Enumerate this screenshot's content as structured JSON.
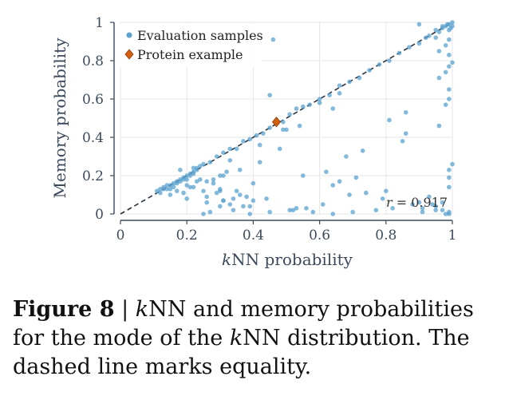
{
  "chart_data": {
    "type": "scatter",
    "xlabel_italic": "k",
    "xlabel_rest": "NN probability",
    "ylabel": "Memory probability",
    "xlim": [
      0,
      1
    ],
    "ylim": [
      0,
      1
    ],
    "xticks": [
      "0",
      "0.2",
      "0.4",
      "0.6",
      "0.8",
      "1"
    ],
    "yticks": [
      "0",
      "0.2",
      "0.4",
      "0.6",
      "0.8",
      "1"
    ],
    "grid": true,
    "legend_position": "top-left",
    "legend": [
      "Evaluation samples",
      "Protein example"
    ],
    "annotation_italic": "r",
    "annotation_rest": " = 0.917",
    "reference_line": "y = x (dashed)",
    "colors": {
      "samples": "#5aa2cf",
      "highlight": "#d35f0f",
      "axis": "#3c4a5c",
      "grid": "#e6e6e6"
    },
    "series": [
      {
        "name": "Evaluation samples",
        "x": [
          0.11,
          0.12,
          0.13,
          0.14,
          0.15,
          0.16,
          0.17,
          0.18,
          0.19,
          0.2,
          0.21,
          0.22,
          0.23,
          0.24,
          0.12,
          0.14,
          0.16,
          0.18,
          0.2,
          0.22,
          0.13,
          0.15,
          0.17,
          0.19,
          0.21,
          0.23,
          0.25,
          0.27,
          0.29,
          0.31,
          0.33,
          0.35,
          0.37,
          0.39,
          0.41,
          0.43,
          0.45,
          0.47,
          0.49,
          0.51,
          0.53,
          0.55,
          0.57,
          0.6,
          0.63,
          0.66,
          0.69,
          0.72,
          0.75,
          0.78,
          0.81,
          0.84,
          0.87,
          0.9,
          0.93,
          0.96,
          0.98,
          0.99,
          1.0,
          1.0,
          0.995,
          0.99,
          0.985,
          0.97,
          0.95,
          0.92,
          0.96,
          0.99,
          1.0,
          0.99,
          0.98,
          1.0,
          0.97,
          0.94,
          0.91,
          0.95,
          0.99,
          0.86,
          0.73,
          0.68,
          0.86,
          0.2,
          0.22,
          0.24,
          0.25,
          0.26,
          0.28,
          0.3,
          0.32,
          0.15,
          0.17,
          0.19,
          0.21,
          0.23,
          0.26,
          0.29,
          0.31,
          0.34,
          0.36,
          0.38,
          0.26,
          0.3,
          0.33,
          0.37,
          0.28,
          0.36,
          0.42,
          0.48,
          0.45,
          0.5,
          0.54,
          0.6,
          0.64,
          0.66,
          0.33,
          0.42,
          0.55,
          0.62,
          0.71,
          0.77,
          0.97,
          0.52,
          0.25,
          0.27,
          0.34,
          0.4,
          0.44,
          0.56,
          0.61,
          0.69,
          0.74,
          0.82,
          0.88,
          0.95,
          0.99,
          0.99,
          0.99,
          0.98,
          0.96,
          0.93,
          0.9,
          0.85,
          0.79,
          0.66,
          0.58,
          0.51,
          0.39,
          0.31,
          0.22,
          0.18,
          0.3,
          0.35,
          0.39,
          0.45,
          0.53,
          0.64,
          0.7,
          0.8,
          0.91,
          0.99,
          0.46,
          0.31,
          0.2,
          0.3,
          0.4,
          0.49,
          0.64,
          0.81,
          0.98,
          0.96,
          0.99,
          0.99,
          0.98,
          0.99,
          0.95,
          0.97,
          0.9
        ],
        "y": [
          0.12,
          0.13,
          0.13,
          0.15,
          0.15,
          0.16,
          0.17,
          0.18,
          0.19,
          0.2,
          0.21,
          0.22,
          0.23,
          0.25,
          0.11,
          0.13,
          0.14,
          0.17,
          0.18,
          0.21,
          0.14,
          0.13,
          0.16,
          0.18,
          0.2,
          0.24,
          0.26,
          0.27,
          0.3,
          0.32,
          0.34,
          0.34,
          0.38,
          0.39,
          0.41,
          0.42,
          0.45,
          0.49,
          0.48,
          0.52,
          0.55,
          0.56,
          0.57,
          0.6,
          0.62,
          0.67,
          0.69,
          0.71,
          0.75,
          0.78,
          0.8,
          0.84,
          0.87,
          0.89,
          0.93,
          0.95,
          0.98,
          0.99,
          1.0,
          0.98,
          0.97,
          0.96,
          0.99,
          0.98,
          0.96,
          0.92,
          0.85,
          0.83,
          0.79,
          0.77,
          0.74,
          0.26,
          0.06,
          0.05,
          0.03,
          0.02,
          0.01,
          0.42,
          0.33,
          0.3,
          0.53,
          0.15,
          0.14,
          0.18,
          0.12,
          0.17,
          0.16,
          0.2,
          0.22,
          0.1,
          0.12,
          0.11,
          0.14,
          0.17,
          0.09,
          0.11,
          0.07,
          0.08,
          0.1,
          0.09,
          0.06,
          0.04,
          0.05,
          0.04,
          0.18,
          0.23,
          0.36,
          0.34,
          0.62,
          0.44,
          0.46,
          0.58,
          0.55,
          0.63,
          0.28,
          0.27,
          0.2,
          0.22,
          0.19,
          0.02,
          0.02,
          0.02,
          0.0,
          0.01,
          0.02,
          0.07,
          0.08,
          0.03,
          0.05,
          0.1,
          0.11,
          0.03,
          0.05,
          0.04,
          0.14,
          0.19,
          0.23,
          0.0,
          0.46,
          0.09,
          0.06,
          0.38,
          0.08,
          0.17,
          0.01,
          0.02,
          0.0,
          0.07,
          0.24,
          0.23,
          0.13,
          0.12,
          0.04,
          0.01,
          0.03,
          0.0,
          0.01,
          0.12,
          0.01,
          0.0,
          0.91,
          0.2,
          0.08,
          0.12,
          0.16,
          0.44,
          0.15,
          0.49,
          0.57,
          0.71,
          0.6,
          0.65,
          0.88,
          0.91,
          0.92,
          0.97,
          0.99
        ],
        "color": "#5aa2cf"
      },
      {
        "name": "Protein example",
        "x": [
          0.47
        ],
        "y": [
          0.48
        ],
        "color": "#d35f0f"
      }
    ]
  },
  "caption": {
    "label": "Figure 8",
    "sep": " | ",
    "italic_k": "k",
    "text_1": "NN and memory probabilities for the mode of the ",
    "italic_k2": "k",
    "text_2": "NN distribution. The dashed line marks equality."
  }
}
